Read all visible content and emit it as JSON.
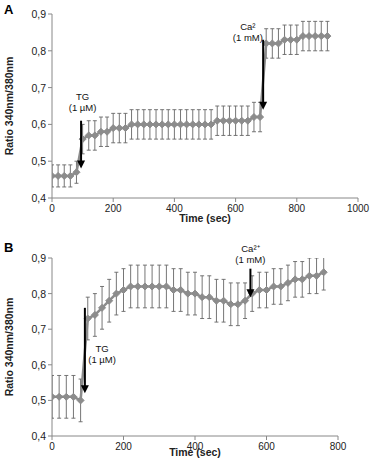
{
  "chart_data": [
    {
      "type": "line",
      "title": "A",
      "x_label": "Time (sec)",
      "y_label": "Ratio 340nm/380nm",
      "xlim": [
        0,
        1000
      ],
      "xticks": [
        0,
        200,
        400,
        600,
        800,
        1000
      ],
      "ylim": [
        0.4,
        0.9
      ],
      "yticks": [
        {
          "value": 0.4,
          "label": "0,4"
        },
        {
          "value": 0.5,
          "label": "0,5"
        },
        {
          "value": 0.6,
          "label": "0,6"
        },
        {
          "value": 0.7,
          "label": "0,7"
        },
        {
          "value": 0.8,
          "label": "0,8"
        },
        {
          "value": 0.9,
          "label": "0,9"
        }
      ],
      "grid": false,
      "series": [
        {
          "color": "#8c8c8c",
          "marker": "diamond",
          "line_style": "solid",
          "x": [
            0,
            20,
            40,
            60,
            80,
            100,
            120,
            140,
            160,
            180,
            200,
            220,
            240,
            260,
            280,
            300,
            320,
            340,
            360,
            380,
            400,
            420,
            440,
            460,
            480,
            500,
            520,
            540,
            560,
            580,
            600,
            620,
            640,
            660,
            680,
            700,
            720,
            740,
            760,
            780,
            800,
            820,
            840,
            860,
            880,
            900
          ],
          "values": [
            0.46,
            0.46,
            0.46,
            0.46,
            0.47,
            0.56,
            0.57,
            0.57,
            0.58,
            0.58,
            0.59,
            0.59,
            0.59,
            0.6,
            0.6,
            0.6,
            0.6,
            0.6,
            0.6,
            0.6,
            0.6,
            0.6,
            0.6,
            0.6,
            0.6,
            0.6,
            0.6,
            0.61,
            0.61,
            0.61,
            0.61,
            0.61,
            0.61,
            0.62,
            0.62,
            0.82,
            0.82,
            0.82,
            0.83,
            0.83,
            0.83,
            0.84,
            0.84,
            0.84,
            0.84,
            0.84
          ],
          "errors": [
            0.03,
            0.03,
            0.03,
            0.03,
            0.03,
            0.04,
            0.04,
            0.04,
            0.04,
            0.04,
            0.04,
            0.04,
            0.04,
            0.04,
            0.04,
            0.04,
            0.04,
            0.04,
            0.04,
            0.04,
            0.04,
            0.04,
            0.04,
            0.04,
            0.04,
            0.04,
            0.04,
            0.04,
            0.04,
            0.04,
            0.04,
            0.04,
            0.04,
            0.04,
            0.04,
            0.04,
            0.04,
            0.04,
            0.04,
            0.04,
            0.04,
            0.04,
            0.04,
            0.04,
            0.04,
            0.04
          ]
        }
      ],
      "annotations": [
        {
          "lines": [
            "TG",
            "(1 µM)"
          ],
          "x": 95,
          "y_from": 0.61,
          "y_to": 0.48,
          "text_x": 100,
          "text_y": 0.66
        },
        {
          "lines": [
            "Ca²",
            "(1 mM)"
          ],
          "x": 690,
          "y_from": 0.83,
          "y_to": 0.64,
          "text_x": 640,
          "text_y": 0.85
        }
      ]
    },
    {
      "type": "line",
      "title": "B",
      "x_label": "Time (sec)",
      "y_label": "Ratio 340nm/380nm",
      "xlim": [
        0,
        800
      ],
      "xticks": [
        0,
        200,
        400,
        600,
        800
      ],
      "ylim": [
        0.4,
        0.9
      ],
      "yticks": [
        {
          "value": 0.4,
          "label": "0,4"
        },
        {
          "value": 0.5,
          "label": "0,5"
        },
        {
          "value": 0.6,
          "label": "0,6"
        },
        {
          "value": 0.7,
          "label": "0,7"
        },
        {
          "value": 0.8,
          "label": "0,8"
        },
        {
          "value": 0.9,
          "label": "0,9"
        }
      ],
      "grid": false,
      "series": [
        {
          "color": "#8c8c8c",
          "marker": "diamond",
          "line_style": "solid",
          "x": [
            0,
            20,
            40,
            60,
            80,
            100,
            120,
            140,
            160,
            180,
            200,
            220,
            240,
            260,
            280,
            300,
            320,
            340,
            360,
            380,
            400,
            420,
            440,
            460,
            480,
            500,
            520,
            540,
            560,
            580,
            600,
            620,
            640,
            660,
            680,
            700,
            720,
            740,
            760
          ],
          "values": [
            0.51,
            0.51,
            0.51,
            0.51,
            0.5,
            0.73,
            0.74,
            0.76,
            0.78,
            0.8,
            0.81,
            0.82,
            0.82,
            0.82,
            0.82,
            0.82,
            0.82,
            0.81,
            0.81,
            0.8,
            0.8,
            0.79,
            0.79,
            0.78,
            0.78,
            0.77,
            0.77,
            0.78,
            0.8,
            0.81,
            0.81,
            0.82,
            0.82,
            0.83,
            0.84,
            0.84,
            0.85,
            0.85,
            0.86
          ],
          "errors": [
            0.06,
            0.06,
            0.06,
            0.06,
            0.06,
            0.06,
            0.06,
            0.06,
            0.06,
            0.06,
            0.06,
            0.06,
            0.06,
            0.06,
            0.06,
            0.06,
            0.06,
            0.06,
            0.06,
            0.06,
            0.06,
            0.06,
            0.06,
            0.06,
            0.06,
            0.06,
            0.06,
            0.05,
            0.05,
            0.05,
            0.05,
            0.05,
            0.05,
            0.05,
            0.05,
            0.05,
            0.05,
            0.05,
            0.05
          ]
        }
      ],
      "annotations": [
        {
          "lines": [
            "TG",
            "(1 µM)"
          ],
          "x": 92,
          "y_from": 0.76,
          "y_to": 0.52,
          "text_x": 140,
          "text_y": 0.63
        },
        {
          "lines": [
            "Ca²⁺",
            "(1 mM)"
          ],
          "x": 555,
          "y_from": 0.87,
          "y_to": 0.79,
          "text_x": 555,
          "text_y": 0.91
        }
      ]
    }
  ]
}
